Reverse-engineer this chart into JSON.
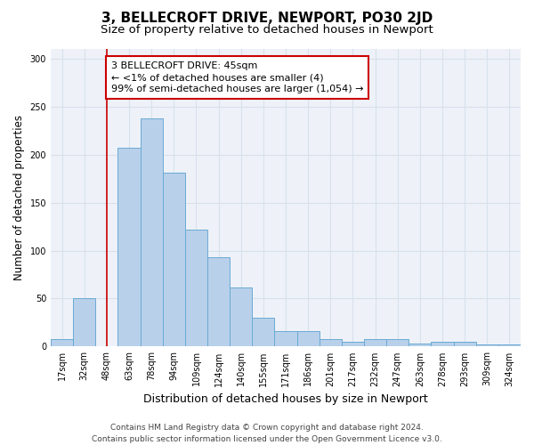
{
  "title": "3, BELLECROFT DRIVE, NEWPORT, PO30 2JD",
  "subtitle": "Size of property relative to detached houses in Newport",
  "xlabel": "Distribution of detached houses by size in Newport",
  "ylabel": "Number of detached properties",
  "categories": [
    "17sqm",
    "32sqm",
    "48sqm",
    "63sqm",
    "78sqm",
    "94sqm",
    "109sqm",
    "124sqm",
    "140sqm",
    "155sqm",
    "171sqm",
    "186sqm",
    "201sqm",
    "217sqm",
    "232sqm",
    "247sqm",
    "263sqm",
    "278sqm",
    "293sqm",
    "309sqm",
    "324sqm"
  ],
  "values": [
    8,
    50,
    0,
    207,
    238,
    181,
    122,
    93,
    62,
    30,
    16,
    16,
    8,
    5,
    8,
    8,
    3,
    5,
    5,
    2,
    2
  ],
  "bar_color": "#b8d0ea",
  "bar_edge_color": "#6aaad4",
  "vline_x": 2,
  "vline_color": "#cc0000",
  "annotation_box_text": "3 BELLECROFT DRIVE: 45sqm\n← <1% of detached houses are smaller (4)\n99% of semi-detached houses are larger (1,054) →",
  "annotation_box_color": "#cc0000",
  "ylim": [
    0,
    310
  ],
  "yticks": [
    0,
    50,
    100,
    150,
    200,
    250,
    300
  ],
  "background_color": "#eef2f8",
  "grid_color": "#d8e0ec",
  "footer_line1": "Contains HM Land Registry data © Crown copyright and database right 2024.",
  "footer_line2": "Contains public sector information licensed under the Open Government Licence v3.0.",
  "title_fontsize": 11,
  "subtitle_fontsize": 9.5,
  "xlabel_fontsize": 9,
  "ylabel_fontsize": 8.5,
  "tick_fontsize": 7,
  "footer_fontsize": 6.5,
  "annot_fontsize": 8
}
